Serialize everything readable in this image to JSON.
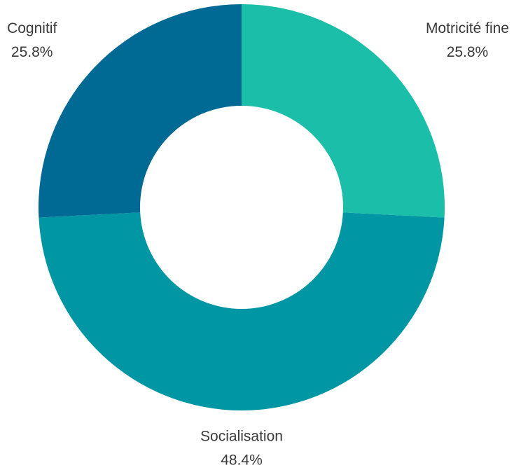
{
  "chart_data": {
    "type": "donut",
    "categories": [
      "Motricité fine",
      "Socialisation",
      "Cognitif"
    ],
    "values": [
      25.8,
      48.4,
      25.8
    ],
    "value_labels": [
      "25.8%",
      "48.4%",
      "25.8%"
    ],
    "colors": [
      "#1bbfa9",
      "#0096a3",
      "#006994"
    ]
  }
}
